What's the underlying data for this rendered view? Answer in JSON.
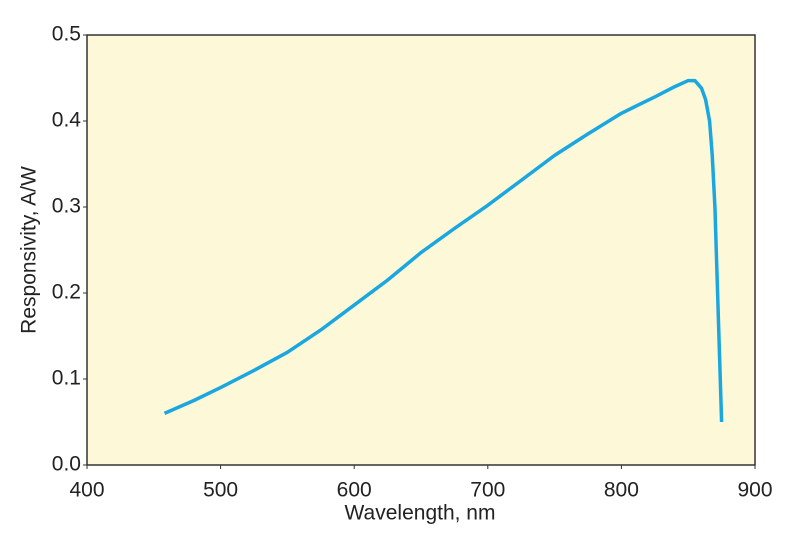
{
  "chart_data": {
    "type": "line",
    "x_label": "Wavelength, nm",
    "y_label": "Responsivity, A/W",
    "x": [
      458,
      480,
      500,
      525,
      550,
      575,
      600,
      625,
      650,
      675,
      700,
      725,
      750,
      775,
      800,
      825,
      840,
      850,
      855,
      860,
      863,
      866,
      868,
      870,
      872,
      875
    ],
    "series": [
      {
        "name": "Responsivity",
        "color": "#1aa7e0",
        "values": [
          0.06,
          0.075,
          0.09,
          0.11,
          0.131,
          0.157,
          0.186,
          0.215,
          0.247,
          0.275,
          0.302,
          0.331,
          0.36,
          0.385,
          0.409,
          0.428,
          0.44,
          0.447,
          0.447,
          0.438,
          0.425,
          0.4,
          0.36,
          0.3,
          0.2,
          0.05
        ]
      }
    ],
    "xlim": [
      400,
      900
    ],
    "xticks": [
      400,
      500,
      600,
      700,
      800,
      900
    ],
    "ylim": [
      0,
      0.5
    ],
    "yticks": [
      {
        "value": 0,
        "label": "0.0"
      },
      0.1,
      0.2,
      0.3,
      0.4,
      0.5
    ],
    "background": "#fdf8d7"
  }
}
